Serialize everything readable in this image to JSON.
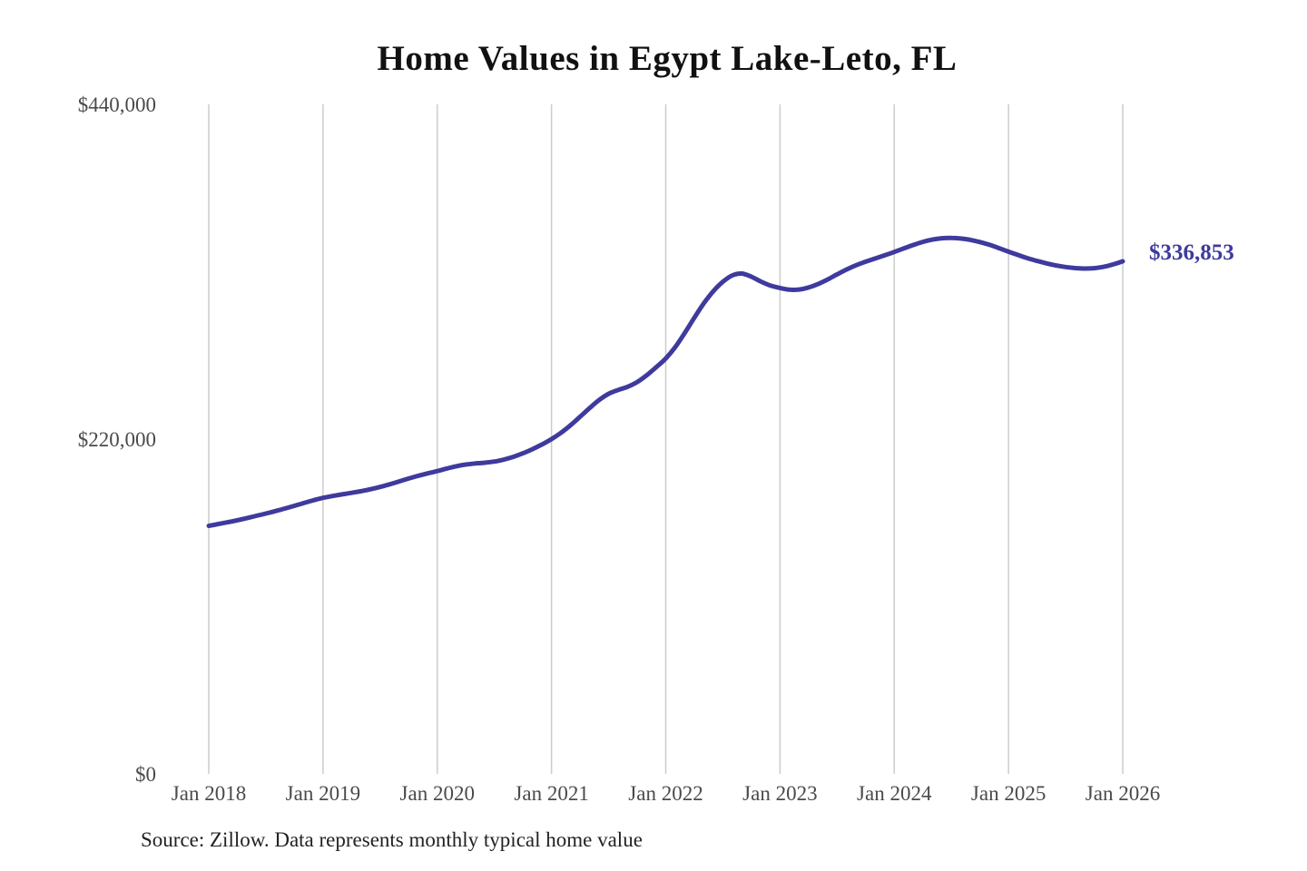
{
  "chart_data": {
    "type": "line",
    "title": "Home Values in Egypt Lake-Leto, FL",
    "source": "Source: Zillow. Data represents monthly typical home value",
    "series_name": "Monthly typical home value",
    "end_label": "$336,853",
    "latest_value": 336853,
    "ylim": [
      0,
      440000
    ],
    "grid": "vertical-only",
    "legend_position": "none",
    "y_ticks": [
      {
        "value": 440000,
        "label": "$440,000"
      },
      {
        "value": 220000,
        "label": "$220,000"
      },
      {
        "value": 0,
        "label": "$0"
      }
    ],
    "x_ticks": [
      "Jan 2018",
      "Jan 2019",
      "Jan 2020",
      "Jan 2021",
      "Jan 2022",
      "Jan 2023",
      "Jan 2024",
      "Jan 2025",
      "Jan 2026"
    ],
    "x": [
      "2018-01",
      "2018-02",
      "2018-03",
      "2018-04",
      "2018-05",
      "2018-06",
      "2018-07",
      "2018-08",
      "2018-09",
      "2018-10",
      "2018-11",
      "2018-12",
      "2019-01",
      "2019-02",
      "2019-03",
      "2019-04",
      "2019-05",
      "2019-06",
      "2019-07",
      "2019-08",
      "2019-09",
      "2019-10",
      "2019-11",
      "2019-12",
      "2020-01",
      "2020-02",
      "2020-03",
      "2020-04",
      "2020-05",
      "2020-06",
      "2020-07",
      "2020-08",
      "2020-09",
      "2020-10",
      "2020-11",
      "2020-12",
      "2021-01",
      "2021-02",
      "2021-03",
      "2021-04",
      "2021-05",
      "2021-06",
      "2021-07",
      "2021-08",
      "2021-09",
      "2021-10",
      "2021-11",
      "2021-12",
      "2022-01",
      "2022-02",
      "2022-03",
      "2022-04",
      "2022-05",
      "2022-06",
      "2022-07",
      "2022-08",
      "2022-09",
      "2022-10",
      "2022-11",
      "2022-12",
      "2023-01",
      "2023-02",
      "2023-03",
      "2023-04",
      "2023-05",
      "2023-06",
      "2023-07",
      "2023-08",
      "2023-09",
      "2023-10",
      "2023-11",
      "2023-12",
      "2024-01",
      "2024-02",
      "2024-03",
      "2024-04",
      "2024-05",
      "2024-06",
      "2024-07",
      "2024-08",
      "2024-09",
      "2024-10",
      "2024-11",
      "2024-12",
      "2025-01",
      "2025-02",
      "2025-03",
      "2025-04",
      "2025-05",
      "2025-06",
      "2025-07",
      "2025-08",
      "2025-09",
      "2025-10",
      "2025-11",
      "2025-12",
      "2026-01"
    ],
    "values": [
      163000,
      164200,
      165400,
      166700,
      168100,
      169600,
      171100,
      172700,
      174400,
      176200,
      178000,
      179800,
      181400,
      182600,
      183700,
      184700,
      185800,
      187100,
      188600,
      190300,
      192200,
      194100,
      195900,
      197500,
      199000,
      200700,
      202200,
      203300,
      204000,
      204500,
      205300,
      206600,
      208400,
      210700,
      213400,
      216500,
      220000,
      224200,
      229100,
      234700,
      240400,
      245700,
      249800,
      252300,
      254400,
      257500,
      262000,
      267300,
      273000,
      280500,
      289800,
      299800,
      309300,
      317200,
      323400,
      327600,
      328800,
      326700,
      323500,
      320900,
      319300,
      318200,
      318300,
      319600,
      321900,
      324900,
      328300,
      331500,
      334300,
      336600,
      338700,
      340800,
      343000,
      345300,
      347600,
      349600,
      351100,
      352000,
      352200,
      351800,
      350900,
      349500,
      347700,
      345500,
      343200,
      341000,
      338900,
      337100,
      335500,
      334100,
      333100,
      332400,
      332100,
      332300,
      333200,
      334800,
      336853
    ],
    "colors": {
      "line": "#3f3a9d",
      "end_label": "#3f3a9d",
      "grid": "#cccccc",
      "axis_text": "#4a4a4a",
      "title": "#111111",
      "source_text": "#222222",
      "background": "#ffffff"
    }
  }
}
